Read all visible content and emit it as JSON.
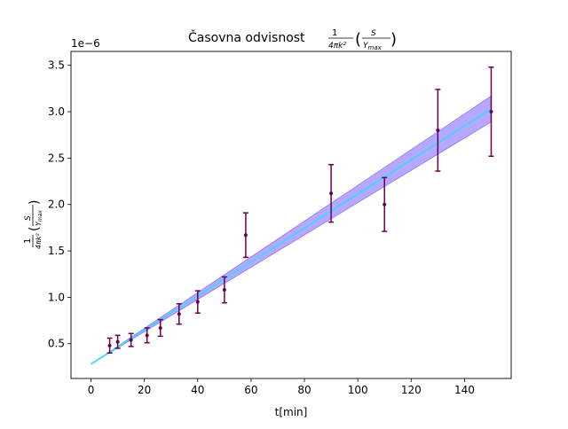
{
  "chart_data": {
    "type": "scatter",
    "title_prefix": "Časovna odvisnost",
    "title_math": "1/(4πk²) (S / Y_max)",
    "xlabel": "t[min]",
    "ylabel_math": "1/(4πk²) (S / Y_max)",
    "y_offset_text": "1e−6",
    "y_scale": 1e-06,
    "xlim": [
      -7.5,
      157.5
    ],
    "ylim": [
      0.125,
      3.65
    ],
    "x_ticks": [
      0,
      20,
      40,
      60,
      80,
      100,
      120,
      140
    ],
    "y_ticks": [
      0.5,
      1.0,
      1.5,
      2.0,
      2.5,
      3.0,
      3.5
    ],
    "x_tick_labels": [
      "0",
      "20",
      "40",
      "60",
      "80",
      "100",
      "120",
      "140"
    ],
    "y_tick_labels": [
      "0.5",
      "1.0",
      "1.5",
      "2.0",
      "2.5",
      "3.0",
      "3.5"
    ],
    "grid": false,
    "series": [
      {
        "kind": "errorbar",
        "color": "#6a004f",
        "x": [
          7,
          10,
          15,
          21,
          26,
          33,
          40,
          50,
          58,
          90,
          110,
          130,
          150
        ],
        "y": [
          0.48,
          0.52,
          0.54,
          0.59,
          0.67,
          0.82,
          0.95,
          1.08,
          1.67,
          2.12,
          2.0,
          2.8,
          3.0
        ],
        "yerr": [
          0.08,
          0.07,
          0.07,
          0.08,
          0.09,
          0.11,
          0.12,
          0.14,
          0.24,
          0.31,
          0.29,
          0.44,
          0.48
        ]
      },
      {
        "kind": "fit-line",
        "color": "#45d7f2",
        "x": [
          0,
          150
        ],
        "y": [
          0.28,
          3.03
        ]
      },
      {
        "kind": "confidence-band",
        "color": "#7b61ff",
        "opacity": 0.55,
        "x": [
          0,
          150
        ],
        "y_low": [
          0.28,
          2.89
        ],
        "y_high": [
          0.28,
          3.17
        ]
      }
    ]
  }
}
